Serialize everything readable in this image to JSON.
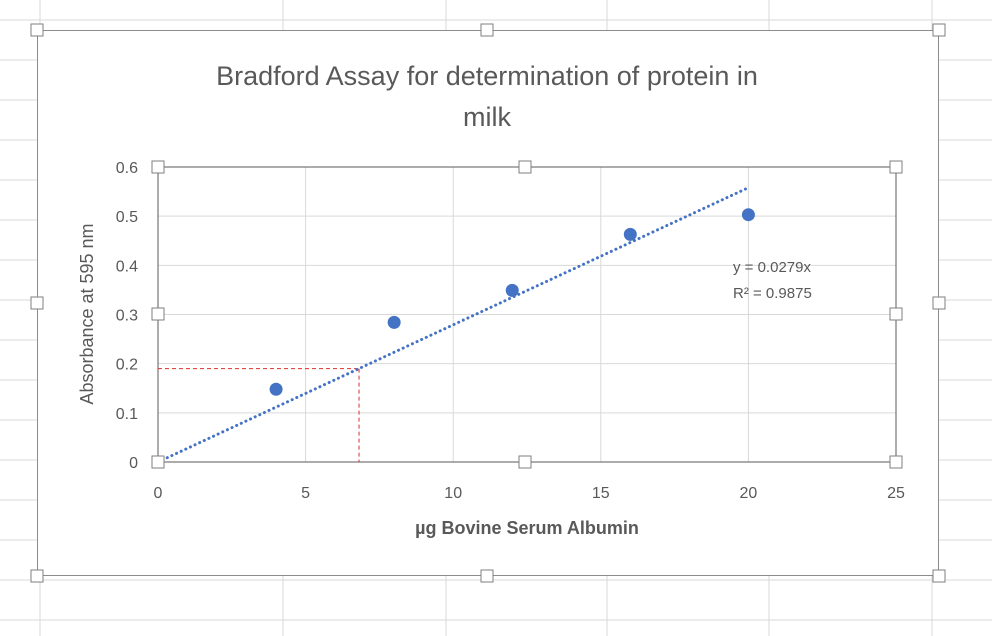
{
  "chart_data": {
    "type": "scatter",
    "title": "Bradford Assay for determination of protein in milk",
    "title_lines": [
      "Bradford Assay for determination of protein in",
      "milk"
    ],
    "xlabel": "µg Bovine Serum Albumin",
    "ylabel": "Absorbance at 595 nm",
    "xlim": [
      0,
      25
    ],
    "ylim": [
      0,
      0.6
    ],
    "x_ticks": [
      "0",
      "5",
      "10",
      "15",
      "20",
      "25"
    ],
    "y_ticks": [
      "0",
      "0.1",
      "0.2",
      "0.3",
      "0.4",
      "0.5",
      "0.6"
    ],
    "grid": true,
    "legend": "none",
    "series": [
      {
        "x": [
          4,
          8,
          12,
          16,
          20
        ],
        "y": [
          0.148,
          0.284,
          0.349,
          0.463,
          0.503
        ],
        "color": "#4472c4"
      }
    ],
    "trendline": {
      "type": "linear",
      "slope": 0.0279,
      "intercept": 0,
      "x_range": [
        0,
        20
      ],
      "style": "dotted",
      "color": "#4472c4",
      "equation": "y = 0.0279x",
      "r_squared": "R² = 0.9875"
    },
    "reference_lines": {
      "y": 0.19,
      "x": 6.81,
      "color": "#e0302a",
      "style": "dashed"
    }
  }
}
